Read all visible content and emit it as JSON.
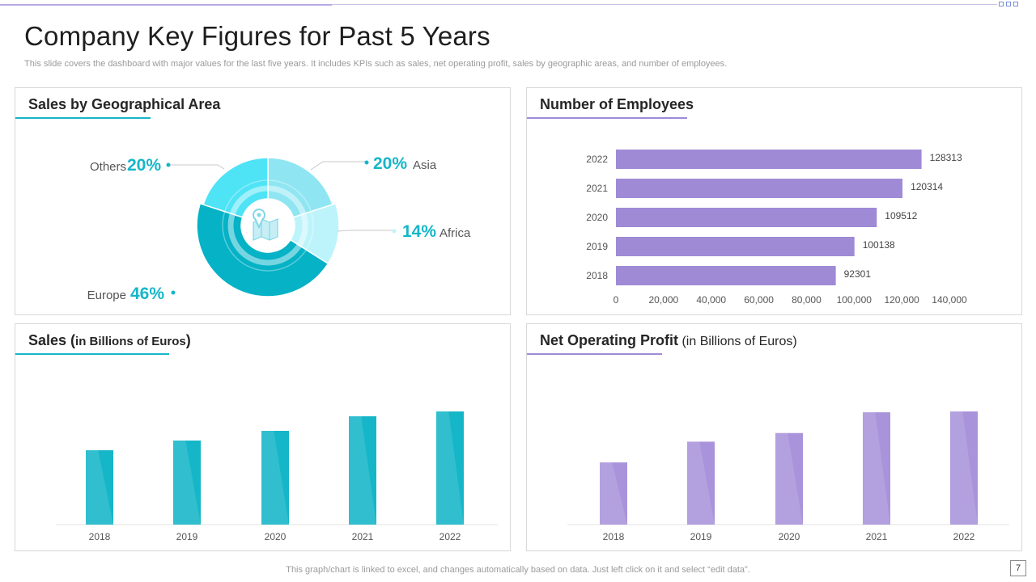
{
  "header": {
    "title": "Company Key Figures for Past 5 Years",
    "subtitle": "This slide covers the dashboard with major values for the last five years. It includes KPIs such as sales, net operating profit, sales by geographic areas, and number of employees."
  },
  "footer": {
    "note": "This graph/chart is linked to excel,  and changes automatically based on data. Just left click on it and select “edit data”.",
    "page_number": "7"
  },
  "colors": {
    "teal": "#15b6c8",
    "purple": "#9f8ad6",
    "teal_light": "#8fe6f2",
    "teal_pale": "#bdf4fb",
    "teal_bright": "#4fe3f6",
    "teal_dark": "#05b2c6"
  },
  "panels": {
    "geo": {
      "title": "Sales by Geographical Area"
    },
    "employees": {
      "title": "Number of Employees"
    },
    "sales": {
      "title_main": "Sales (",
      "title_small": "in Billions of Euros",
      "title_end": ")"
    },
    "profit": {
      "title_main": "Net Operating Profit",
      "title_small": " (in Billions of Euros)"
    }
  },
  "chart_data": [
    {
      "type": "pie",
      "title": "Sales by Geographical Area",
      "slices": [
        {
          "label": "Asia",
          "value": 20,
          "display": "20%"
        },
        {
          "label": "Africa",
          "value": 14,
          "display": "14%"
        },
        {
          "label": "Europe",
          "value": 46,
          "display": "46%"
        },
        {
          "label": "Others",
          "value": 20,
          "display": "20%"
        }
      ],
      "center_icon": "map-pin-icon"
    },
    {
      "type": "bar",
      "orientation": "horizontal",
      "title": "Number of Employees",
      "categories": [
        "2022",
        "2021",
        "2020",
        "2019",
        "2018"
      ],
      "values": [
        128313,
        120314,
        109512,
        100138,
        92301
      ],
      "xlim": [
        0,
        140000
      ],
      "xticks": [
        "0",
        "20,000",
        "40,000",
        "60,000",
        "80,000",
        "100,000",
        "120,000",
        "140,000"
      ]
    },
    {
      "type": "bar",
      "title": "Sales (in Billions of Euros)",
      "categories": [
        "2018",
        "2019",
        "2020",
        "2021",
        "2022"
      ],
      "values": [
        46,
        52,
        58,
        67,
        70
      ],
      "ylim": [
        0,
        70
      ]
    },
    {
      "type": "bar",
      "title": "Net Operating Profit (in Billions of Euros)",
      "categories": [
        "2018",
        "2019",
        "2020",
        "2021",
        "2022"
      ],
      "values": [
        36,
        48,
        53,
        65,
        65.5
      ],
      "ylim": [
        0,
        65.5
      ]
    }
  ]
}
